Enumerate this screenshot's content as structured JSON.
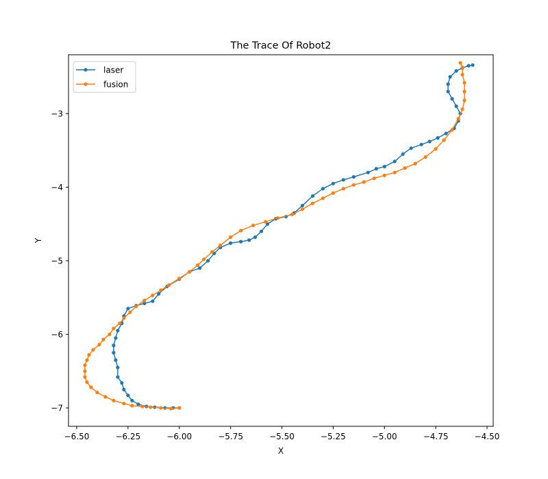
{
  "chart_data": {
    "type": "line",
    "title": "The Trace Of Robot2",
    "xlabel": "X",
    "ylabel": "Y",
    "xlim": [
      -6.54,
      -4.47
    ],
    "ylim": [
      -7.25,
      -2.2
    ],
    "xticks": [
      -6.5,
      -6.25,
      -6.0,
      -5.75,
      -5.5,
      -5.25,
      -5.0,
      -4.75,
      -4.5
    ],
    "xtick_labels": [
      "−6.50",
      "−6.25",
      "−6.00",
      "−5.75",
      "−5.50",
      "−5.25",
      "−5.00",
      "−4.75",
      "−4.50"
    ],
    "yticks": [
      -7,
      -6,
      -5,
      -4,
      -3
    ],
    "ytick_labels": [
      "−7",
      "−6",
      "−5",
      "−4",
      "−3"
    ],
    "grid": false,
    "legend_position": "top-left",
    "series": [
      {
        "name": "laser",
        "color": "#1f77b4",
        "marker": "dot",
        "points": [
          [
            -6.0,
            -7.0
          ],
          [
            -6.03,
            -7.0
          ],
          [
            -6.07,
            -7.0
          ],
          [
            -6.12,
            -6.99
          ],
          [
            -6.16,
            -6.98
          ],
          [
            -6.2,
            -6.95
          ],
          [
            -6.23,
            -6.9
          ],
          [
            -6.25,
            -6.83
          ],
          [
            -6.27,
            -6.75
          ],
          [
            -6.28,
            -6.66
          ],
          [
            -6.3,
            -6.58
          ],
          [
            -6.3,
            -6.45
          ],
          [
            -6.31,
            -6.35
          ],
          [
            -6.32,
            -6.25
          ],
          [
            -6.32,
            -6.15
          ],
          [
            -6.31,
            -6.05
          ],
          [
            -6.3,
            -5.95
          ],
          [
            -6.28,
            -5.85
          ],
          [
            -6.27,
            -5.75
          ],
          [
            -6.25,
            -5.65
          ],
          [
            -6.21,
            -5.61
          ],
          [
            -6.17,
            -5.58
          ],
          [
            -6.13,
            -5.55
          ],
          [
            -6.1,
            -5.45
          ],
          [
            -6.06,
            -5.35
          ],
          [
            -6.0,
            -5.25
          ],
          [
            -5.95,
            -5.15
          ],
          [
            -5.9,
            -5.1
          ],
          [
            -5.86,
            -5.0
          ],
          [
            -5.83,
            -4.9
          ],
          [
            -5.8,
            -4.82
          ],
          [
            -5.75,
            -4.76
          ],
          [
            -5.7,
            -4.74
          ],
          [
            -5.66,
            -4.72
          ],
          [
            -5.63,
            -4.68
          ],
          [
            -5.6,
            -4.6
          ],
          [
            -5.57,
            -4.5
          ],
          [
            -5.53,
            -4.43
          ],
          [
            -5.48,
            -4.4
          ],
          [
            -5.44,
            -4.35
          ],
          [
            -5.4,
            -4.25
          ],
          [
            -5.35,
            -4.12
          ],
          [
            -5.3,
            -4.02
          ],
          [
            -5.25,
            -3.95
          ],
          [
            -5.2,
            -3.9
          ],
          [
            -5.15,
            -3.86
          ],
          [
            -5.08,
            -3.8
          ],
          [
            -5.04,
            -3.75
          ],
          [
            -5.0,
            -3.72
          ],
          [
            -4.95,
            -3.65
          ],
          [
            -4.91,
            -3.55
          ],
          [
            -4.87,
            -3.47
          ],
          [
            -4.82,
            -3.42
          ],
          [
            -4.78,
            -3.38
          ],
          [
            -4.74,
            -3.33
          ],
          [
            -4.7,
            -3.27
          ],
          [
            -4.66,
            -3.2
          ],
          [
            -4.64,
            -3.1
          ],
          [
            -4.63,
            -3.0
          ],
          [
            -4.65,
            -2.9
          ],
          [
            -4.67,
            -2.8
          ],
          [
            -4.69,
            -2.7
          ],
          [
            -4.69,
            -2.6
          ],
          [
            -4.68,
            -2.5
          ],
          [
            -4.65,
            -2.42
          ],
          [
            -4.62,
            -2.38
          ],
          [
            -4.59,
            -2.35
          ],
          [
            -4.57,
            -2.34
          ]
        ]
      },
      {
        "name": "fusion",
        "color": "#ff7f0e",
        "marker": "dot",
        "points": [
          [
            -6.0,
            -7.0
          ],
          [
            -6.04,
            -7.01
          ],
          [
            -6.09,
            -7.0
          ],
          [
            -6.14,
            -6.99
          ],
          [
            -6.18,
            -6.98
          ],
          [
            -6.23,
            -6.97
          ],
          [
            -6.27,
            -6.94
          ],
          [
            -6.32,
            -6.9
          ],
          [
            -6.36,
            -6.85
          ],
          [
            -6.4,
            -6.79
          ],
          [
            -6.43,
            -6.72
          ],
          [
            -6.45,
            -6.65
          ],
          [
            -6.46,
            -6.58
          ],
          [
            -6.46,
            -6.5
          ],
          [
            -6.46,
            -6.42
          ],
          [
            -6.45,
            -6.35
          ],
          [
            -6.44,
            -6.28
          ],
          [
            -6.42,
            -6.21
          ],
          [
            -6.39,
            -6.14
          ],
          [
            -6.37,
            -6.07
          ],
          [
            -6.34,
            -6.0
          ],
          [
            -6.32,
            -5.92
          ],
          [
            -6.29,
            -5.85
          ],
          [
            -6.27,
            -5.78
          ],
          [
            -6.24,
            -5.7
          ],
          [
            -6.21,
            -5.62
          ],
          [
            -6.17,
            -5.54
          ],
          [
            -6.13,
            -5.47
          ],
          [
            -6.09,
            -5.4
          ],
          [
            -6.05,
            -5.33
          ],
          [
            -6.0,
            -5.24
          ],
          [
            -5.95,
            -5.15
          ],
          [
            -5.91,
            -5.06
          ],
          [
            -5.88,
            -4.98
          ],
          [
            -5.84,
            -4.88
          ],
          [
            -5.8,
            -4.79
          ],
          [
            -5.75,
            -4.68
          ],
          [
            -5.7,
            -4.59
          ],
          [
            -5.64,
            -4.52
          ],
          [
            -5.58,
            -4.47
          ],
          [
            -5.52,
            -4.42
          ],
          [
            -5.45,
            -4.37
          ],
          [
            -5.4,
            -4.3
          ],
          [
            -5.35,
            -4.22
          ],
          [
            -5.3,
            -4.15
          ],
          [
            -5.25,
            -4.08
          ],
          [
            -5.2,
            -4.02
          ],
          [
            -5.15,
            -3.97
          ],
          [
            -5.1,
            -3.93
          ],
          [
            -5.05,
            -3.88
          ],
          [
            -5.0,
            -3.84
          ],
          [
            -4.95,
            -3.8
          ],
          [
            -4.9,
            -3.74
          ],
          [
            -4.85,
            -3.68
          ],
          [
            -4.8,
            -3.59
          ],
          [
            -4.75,
            -3.48
          ],
          [
            -4.71,
            -3.36
          ],
          [
            -4.67,
            -3.22
          ],
          [
            -4.64,
            -3.07
          ],
          [
            -4.62,
            -2.94
          ],
          [
            -4.61,
            -2.82
          ],
          [
            -4.61,
            -2.7
          ],
          [
            -4.61,
            -2.58
          ],
          [
            -4.62,
            -2.47
          ],
          [
            -4.62,
            -2.37
          ],
          [
            -4.63,
            -2.31
          ]
        ]
      }
    ]
  }
}
